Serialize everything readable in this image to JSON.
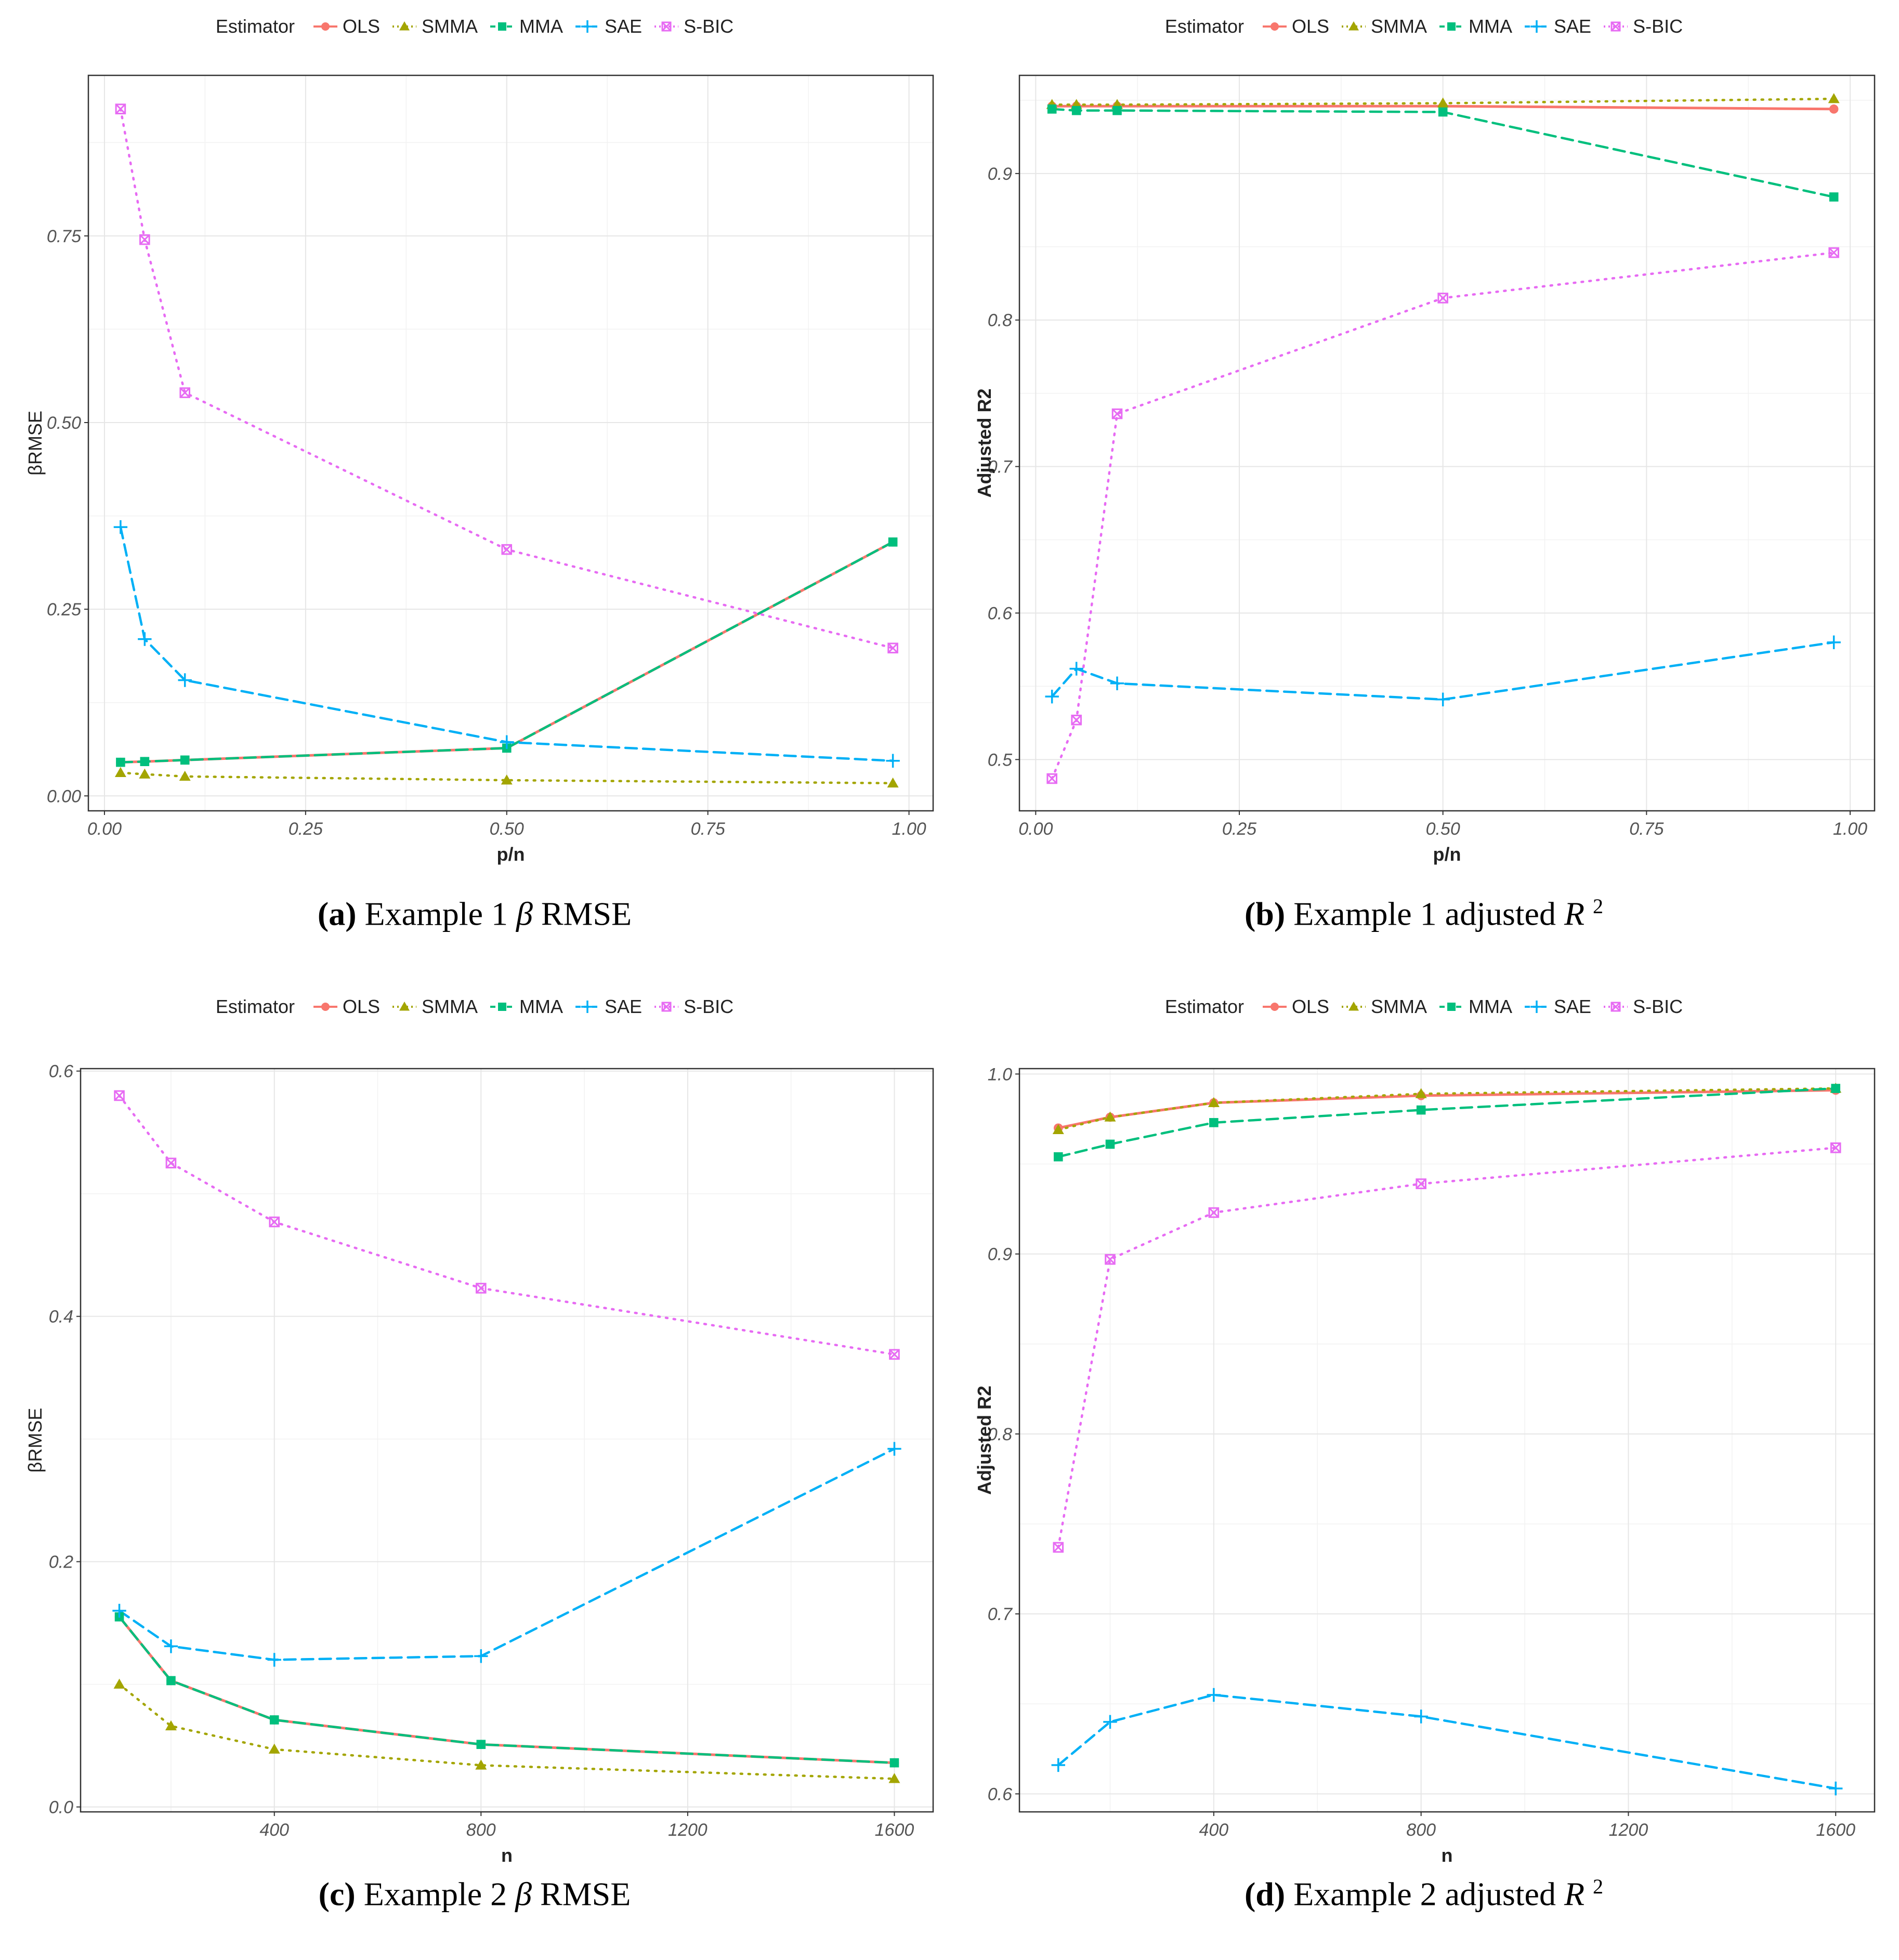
{
  "legend": {
    "title": "Estimator",
    "series": [
      {
        "name": "OLS",
        "color": "#F8766D",
        "shape": "circle",
        "dash": "solid"
      },
      {
        "name": "SMMA",
        "color": "#A3A500",
        "shape": "triangle",
        "dash": "dotted"
      },
      {
        "name": "MMA",
        "color": "#00BF7D",
        "shape": "square",
        "dash": "dashed"
      },
      {
        "name": "SAE",
        "color": "#00B0F6",
        "shape": "plus",
        "dash": "dashed"
      },
      {
        "name": "S-BIC",
        "color": "#E76BF3",
        "shape": "boxx",
        "dash": "dotted"
      }
    ]
  },
  "captions": [
    {
      "tag": "(a)",
      "pre": "Example 1",
      "math": "β",
      "post": "RMSE",
      "sup": ""
    },
    {
      "tag": "(b)",
      "pre": "Example 1 adjusted",
      "math": "R",
      "post": "",
      "sup": "2"
    },
    {
      "tag": "(c)",
      "pre": "Example 2",
      "math": "β",
      "post": "RMSE",
      "sup": ""
    },
    {
      "tag": "(d)",
      "pre": "Example 2 adjusted",
      "math": "R",
      "post": "",
      "sup": "2"
    }
  ],
  "chart_data": [
    {
      "type": "line",
      "xlabel": "p/n",
      "ylabel": "βRMSE",
      "xlim": [
        -0.02,
        1.03
      ],
      "ylim": [
        -0.02,
        0.965
      ],
      "xticks": [
        0,
        0.25,
        0.5,
        0.75,
        1
      ],
      "xtick_labels": [
        "0.00",
        "0.25",
        "0.50",
        "0.75",
        "1.00"
      ],
      "yticks": [
        0,
        0.25,
        0.5,
        0.75
      ],
      "ytick_labels": [
        "0.00",
        "0.25",
        "0.50",
        "0.75"
      ],
      "x": [
        0.02,
        0.05,
        0.1,
        0.5,
        0.98
      ],
      "series": [
        {
          "name": "OLS",
          "values": [
            0.045,
            0.046,
            0.048,
            0.064,
            0.34
          ]
        },
        {
          "name": "SMMA",
          "values": [
            0.031,
            0.029,
            0.026,
            0.021,
            0.017
          ]
        },
        {
          "name": "MMA",
          "values": [
            0.045,
            0.046,
            0.048,
            0.064,
            0.34
          ]
        },
        {
          "name": "SAE",
          "values": [
            0.36,
            0.21,
            0.155,
            0.072,
            0.047
          ]
        },
        {
          "name": "S-BIC",
          "values": [
            0.92,
            0.745,
            0.54,
            0.33,
            0.198
          ]
        }
      ]
    },
    {
      "type": "line",
      "xlabel": "p/n",
      "ylabel": "Adjusted R2",
      "xlim": [
        -0.02,
        1.03
      ],
      "ylim": [
        0.465,
        0.967
      ],
      "xticks": [
        0,
        0.25,
        0.5,
        0.75,
        1
      ],
      "xtick_labels": [
        "0.00",
        "0.25",
        "0.50",
        "0.75",
        "1.00"
      ],
      "yticks": [
        0.5,
        0.6,
        0.7,
        0.8,
        0.9
      ],
      "ytick_labels": [
        "0.5",
        "0.6",
        "0.7",
        "0.8",
        "0.9"
      ],
      "x": [
        0.02,
        0.05,
        0.1,
        0.5,
        0.98
      ],
      "series": [
        {
          "name": "OLS",
          "values": [
            0.946,
            0.946,
            0.946,
            0.946,
            0.944
          ]
        },
        {
          "name": "SMMA",
          "values": [
            0.947,
            0.947,
            0.947,
            0.948,
            0.951
          ]
        },
        {
          "name": "MMA",
          "values": [
            0.944,
            0.943,
            0.943,
            0.942,
            0.884
          ]
        },
        {
          "name": "SAE",
          "values": [
            0.543,
            0.562,
            0.552,
            0.541,
            0.58
          ]
        },
        {
          "name": "S-BIC",
          "values": [
            0.487,
            0.527,
            0.736,
            0.815,
            0.846
          ]
        }
      ]
    },
    {
      "type": "line",
      "xlabel": "n",
      "ylabel": "βRMSE",
      "xlim": [
        25,
        1675
      ],
      "ylim": [
        -0.004,
        0.602
      ],
      "xticks": [
        400,
        800,
        1200,
        1600
      ],
      "xtick_labels": [
        "400",
        "800",
        "1200",
        "1600"
      ],
      "yticks": [
        0,
        0.2,
        0.4,
        0.6
      ],
      "ytick_labels": [
        "0.0",
        "0.2",
        "0.4",
        "0.6"
      ],
      "x": [
        100,
        200,
        400,
        800,
        1600
      ],
      "series": [
        {
          "name": "OLS",
          "values": [
            0.155,
            0.103,
            0.071,
            0.051,
            0.036
          ]
        },
        {
          "name": "SMMA",
          "values": [
            0.1,
            0.066,
            0.047,
            0.034,
            0.023
          ]
        },
        {
          "name": "MMA",
          "values": [
            0.155,
            0.103,
            0.071,
            0.051,
            0.036
          ]
        },
        {
          "name": "SAE",
          "values": [
            0.16,
            0.131,
            0.12,
            0.123,
            0.292
          ]
        },
        {
          "name": "S-BIC",
          "values": [
            0.58,
            0.525,
            0.477,
            0.423,
            0.369
          ]
        }
      ]
    },
    {
      "type": "line",
      "xlabel": "n",
      "ylabel": "Adjusted R2",
      "xlim": [
        25,
        1675
      ],
      "ylim": [
        0.59,
        1.003
      ],
      "xticks": [
        400,
        800,
        1200,
        1600
      ],
      "xtick_labels": [
        "400",
        "800",
        "1200",
        "1600"
      ],
      "yticks": [
        0.6,
        0.7,
        0.8,
        0.9,
        1.0
      ],
      "ytick_labels": [
        "0.6",
        "0.7",
        "0.8",
        "0.9",
        "1.0"
      ],
      "x": [
        100,
        200,
        400,
        800,
        1600
      ],
      "series": [
        {
          "name": "OLS",
          "values": [
            0.97,
            0.976,
            0.984,
            0.988,
            0.991
          ]
        },
        {
          "name": "SMMA",
          "values": [
            0.969,
            0.976,
            0.984,
            0.989,
            0.992
          ]
        },
        {
          "name": "MMA",
          "values": [
            0.954,
            0.961,
            0.973,
            0.98,
            0.992
          ]
        },
        {
          "name": "SAE",
          "values": [
            0.616,
            0.64,
            0.655,
            0.643,
            0.603
          ]
        },
        {
          "name": "S-BIC",
          "values": [
            0.737,
            0.897,
            0.923,
            0.939,
            0.959
          ]
        }
      ]
    }
  ]
}
